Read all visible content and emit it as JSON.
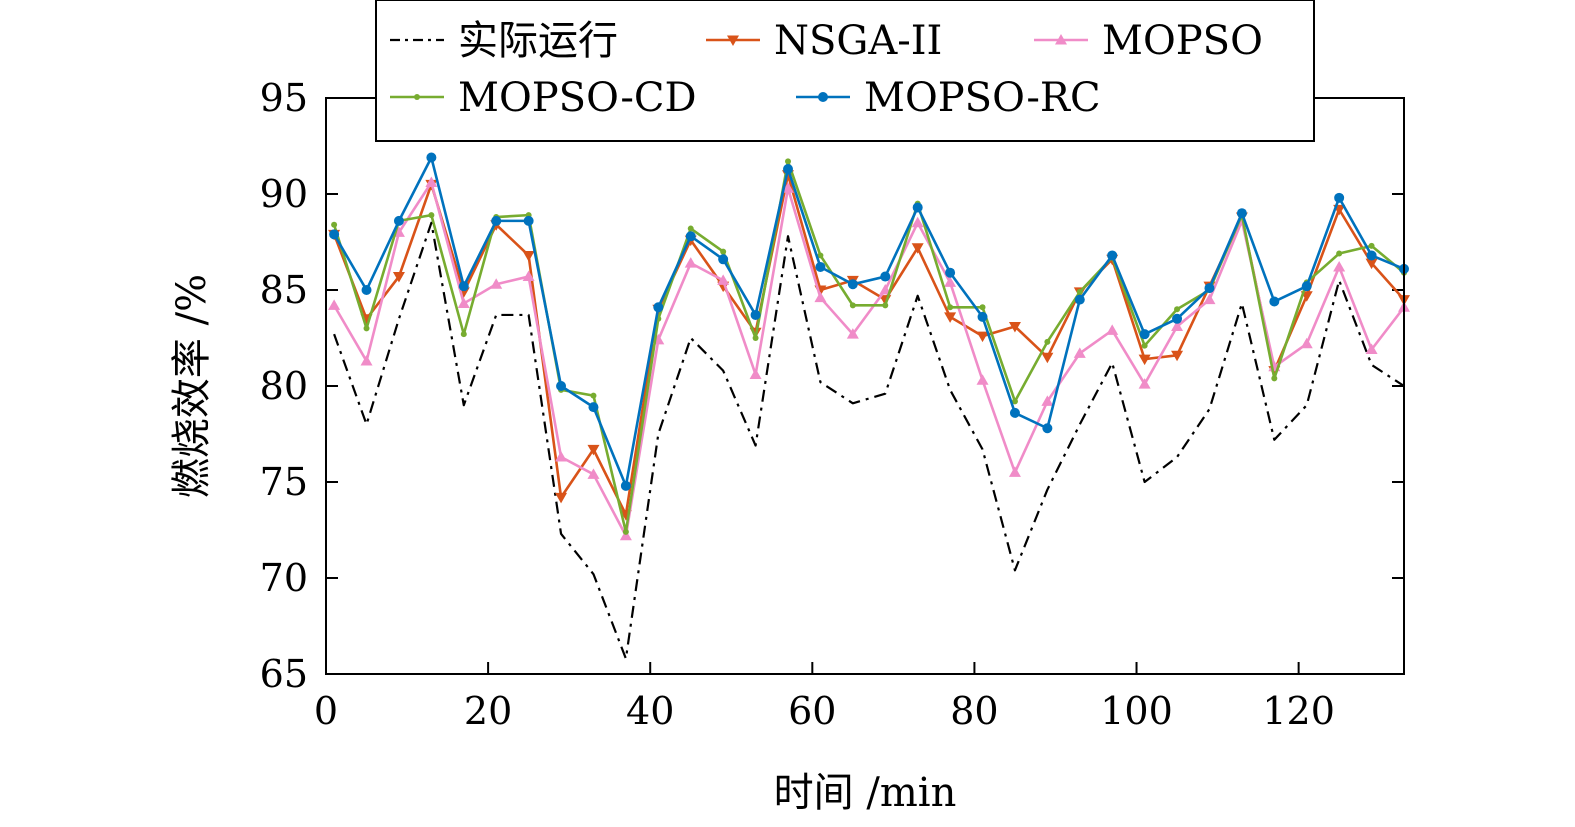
{
  "chart_data": {
    "type": "line",
    "xlabel": "时间 /min",
    "ylabel": "燃烧效率 /%",
    "xlim": [
      0,
      133
    ],
    "ylim": [
      65,
      95
    ],
    "xticks": [
      0,
      20,
      40,
      60,
      80,
      100,
      120
    ],
    "yticks": [
      65,
      70,
      75,
      80,
      85,
      90,
      95
    ],
    "x": [
      1,
      5,
      9,
      13,
      17,
      21,
      25,
      29,
      33,
      37,
      41,
      45,
      49,
      53,
      57,
      61,
      65,
      69,
      73,
      77,
      81,
      85,
      89,
      93,
      97,
      101,
      105,
      109,
      113,
      117,
      121,
      125,
      129,
      133
    ],
    "legend_position": "top",
    "series": [
      {
        "name": "实际运行",
        "color": "#000000",
        "style": "dashdot",
        "marker": "none",
        "values": [
          82.7,
          78.0,
          83.5,
          88.5,
          79.0,
          83.7,
          83.7,
          72.3,
          70.2,
          65.8,
          77.5,
          82.5,
          80.8,
          76.9,
          87.8,
          80.2,
          79.1,
          79.6,
          84.7,
          79.8,
          76.7,
          70.4,
          74.6,
          78.0,
          81.2,
          75.0,
          76.3,
          78.8,
          84.3,
          77.2,
          79.0,
          85.5,
          81.1,
          80.0
        ]
      },
      {
        "name": "NSGA-II",
        "color": "#d95319",
        "style": "solid",
        "marker": "triangle-down",
        "values": [
          87.9,
          83.5,
          85.7,
          90.5,
          84.9,
          88.4,
          86.8,
          74.2,
          76.7,
          73.3,
          84.0,
          87.6,
          85.2,
          82.8,
          91.0,
          85.0,
          85.5,
          84.5,
          87.2,
          83.6,
          82.6,
          83.1,
          81.5,
          84.9,
          86.6,
          81.4,
          81.6,
          85.2,
          88.8,
          80.8,
          84.7,
          89.2,
          86.4,
          84.5
        ]
      },
      {
        "name": "MOPSO",
        "color": "#f08cc8",
        "style": "solid",
        "marker": "triangle-up",
        "values": [
          84.2,
          81.3,
          88.0,
          90.6,
          84.3,
          85.3,
          85.7,
          76.3,
          75.4,
          72.2,
          82.4,
          86.4,
          85.5,
          80.6,
          90.3,
          84.6,
          82.7,
          85.0,
          88.5,
          85.4,
          80.3,
          75.5,
          79.2,
          81.7,
          82.9,
          80.1,
          83.1,
          84.5,
          88.6,
          81.0,
          82.2,
          86.2,
          81.9,
          84.1
        ]
      },
      {
        "name": "MOPSO-CD",
        "color": "#77ac30",
        "style": "solid",
        "marker": "dot",
        "values": [
          88.4,
          83.0,
          88.6,
          88.9,
          82.7,
          88.8,
          88.9,
          79.8,
          79.5,
          72.4,
          83.5,
          88.2,
          87.0,
          82.5,
          91.7,
          86.8,
          84.2,
          84.2,
          89.5,
          84.1,
          84.1,
          79.2,
          82.3,
          84.9,
          86.7,
          82.1,
          84.0,
          85.0,
          88.9,
          80.4,
          85.4,
          86.9,
          87.3,
          85.9
        ]
      },
      {
        "name": "MOPSO-RC",
        "color": "#0072bd",
        "style": "solid",
        "marker": "circle",
        "values": [
          87.9,
          85.0,
          88.6,
          91.9,
          85.2,
          88.6,
          88.6,
          80.0,
          78.9,
          74.8,
          84.1,
          87.8,
          86.6,
          83.7,
          91.3,
          86.2,
          85.3,
          85.7,
          89.3,
          85.9,
          83.6,
          78.6,
          77.8,
          84.5,
          86.8,
          82.7,
          83.5,
          85.1,
          89.0,
          84.4,
          85.2,
          89.8,
          86.8,
          86.1
        ]
      }
    ]
  }
}
